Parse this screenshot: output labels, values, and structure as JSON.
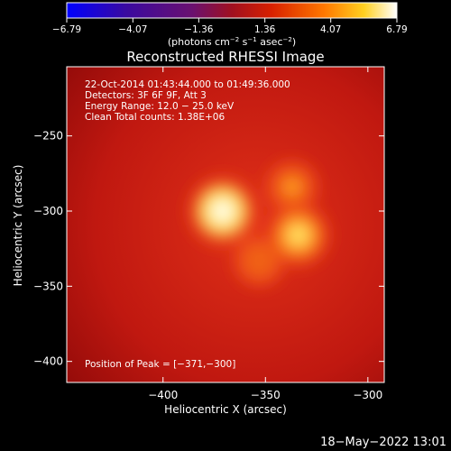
{
  "chart_data": {
    "type": "heatmap",
    "title": "Reconstructed RHESSI Image",
    "xlabel": "Heliocentric X (arcsec)",
    "ylabel": "Heliocentric Y (arcsec)",
    "xlim": [
      -447,
      -292
    ],
    "ylim": [
      -414,
      -204
    ],
    "x_ticks": [
      -400,
      -350,
      -300
    ],
    "x_tick_labels": [
      "−400",
      "−350",
      "−300"
    ],
    "y_ticks": [
      -250,
      -300,
      -350,
      -400
    ],
    "y_tick_labels": [
      "−250",
      "−300",
      "−350",
      "−400"
    ],
    "colorbar": {
      "min": -6.79,
      "max": 6.79,
      "ticks": [
        -6.79,
        -4.07,
        -1.36,
        1.36,
        4.07,
        6.79
      ],
      "tick_labels": [
        "−6.79",
        "−4.07",
        "−1.36",
        "1.36",
        "4.07",
        "6.79"
      ],
      "unit_main": "(photons cm",
      "unit_sup1": "−2",
      "unit_mid1": " s",
      "unit_sup2": "−1",
      "unit_mid2": " asec",
      "unit_sup3": "−2",
      "unit_end": ")"
    },
    "sources": [
      {
        "x": -371,
        "y": -300,
        "intensity": 6.79
      },
      {
        "x": -334,
        "y": -316,
        "intensity": 5.7
      },
      {
        "x": -337,
        "y": -284,
        "intensity": 4.2
      },
      {
        "x": -353,
        "y": -333,
        "intensity": 4.0
      }
    ],
    "background_level": 2.1,
    "annotations": [
      "22-Oct-2014 01:43:44.000 to 01:49:36.000",
      "Detectors: 3F 6F 9F, Att 3",
      "Energy Range: 12.0 − 25.0 keV",
      "Clean    Total counts: 1.38E+06"
    ],
    "peak_label": "Position of Peak = [−371,−300]",
    "footer_timestamp": "18−May−2022 13:01"
  }
}
